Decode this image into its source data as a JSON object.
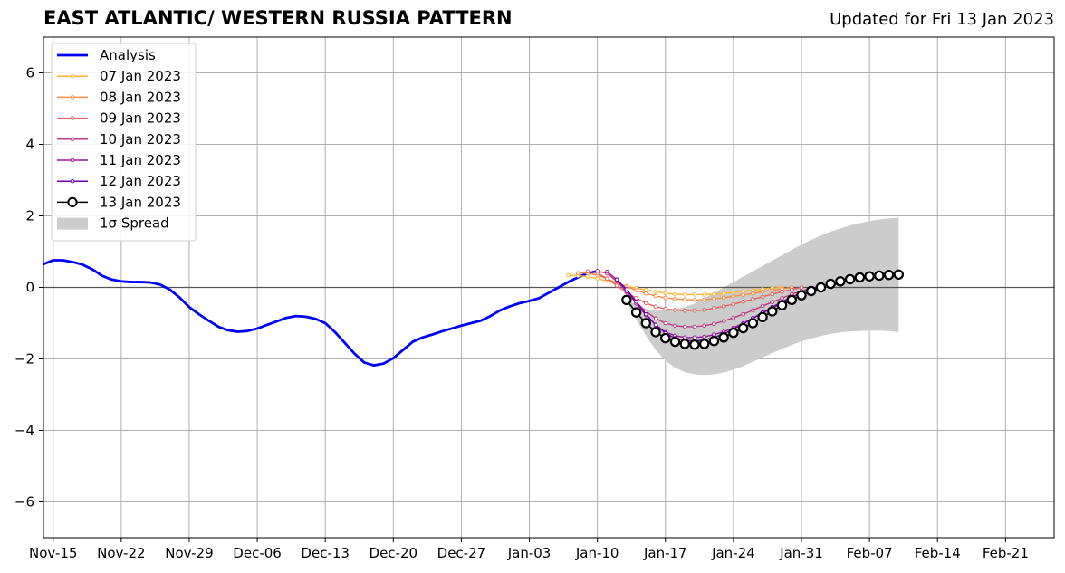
{
  "title": "EAST ATLANTIC/ WESTERN RUSSIA PATTERN",
  "subtitle": "Updated for Fri 13 Jan 2023",
  "chart_data": {
    "type": "line",
    "title": "EAST ATLANTIC/ WESTERN RUSSIA PATTERN",
    "xlabel": "",
    "ylabel": "",
    "xlim": [
      "2022-11-14",
      "2023-02-26"
    ],
    "ylim": [
      -7,
      7
    ],
    "yticks": [
      -6,
      -4,
      -2,
      0,
      2,
      4,
      6
    ],
    "xticks": [
      {
        "date": "2022-11-15",
        "label": "Nov-15"
      },
      {
        "date": "2022-11-22",
        "label": "Nov-22"
      },
      {
        "date": "2022-11-29",
        "label": "Nov-29"
      },
      {
        "date": "2022-12-06",
        "label": "Dec-06"
      },
      {
        "date": "2022-12-13",
        "label": "Dec-13"
      },
      {
        "date": "2022-12-20",
        "label": "Dec-20"
      },
      {
        "date": "2022-12-27",
        "label": "Dec-27"
      },
      {
        "date": "2023-01-03",
        "label": "Jan-03"
      },
      {
        "date": "2023-01-10",
        "label": "Jan-10"
      },
      {
        "date": "2023-01-17",
        "label": "Jan-17"
      },
      {
        "date": "2023-01-24",
        "label": "Jan-24"
      },
      {
        "date": "2023-01-31",
        "label": "Jan-31"
      },
      {
        "date": "2023-02-07",
        "label": "Feb-07"
      },
      {
        "date": "2023-02-14",
        "label": "Feb-14"
      },
      {
        "date": "2023-02-21",
        "label": "Feb-21"
      }
    ],
    "grid": true,
    "zero_line": true,
    "legend_position": "top-left",
    "analysis": {
      "name": "Analysis",
      "color": "#0000ff",
      "start_date": "2022-11-14",
      "values": [
        0.65,
        0.76,
        0.76,
        0.71,
        0.64,
        0.51,
        0.33,
        0.22,
        0.17,
        0.15,
        0.15,
        0.14,
        0.08,
        -0.06,
        -0.28,
        -0.55,
        -0.75,
        -0.93,
        -1.1,
        -1.2,
        -1.24,
        -1.22,
        -1.15,
        -1.05,
        -0.95,
        -0.85,
        -0.8,
        -0.82,
        -0.88,
        -1.0,
        -1.25,
        -1.55,
        -1.85,
        -2.1,
        -2.18,
        -2.13,
        -1.98,
        -1.75,
        -1.52,
        -1.4,
        -1.32,
        -1.23,
        -1.15,
        -1.07,
        -1.0,
        -0.93,
        -0.8,
        -0.64,
        -0.53,
        -0.44,
        -0.38,
        -0.3,
        -0.15,
        0.0,
        0.15,
        0.28,
        0.4,
        0.45
      ]
    },
    "forecasts": [
      {
        "name": "07 Jan 2023",
        "color": "#fcb634",
        "start_date": "2023-01-07",
        "values": [
          0.34,
          0.33,
          0.3,
          0.25,
          0.18,
          0.1,
          0.04,
          -0.02,
          -0.07,
          -0.12,
          -0.16,
          -0.19,
          -0.2,
          -0.2,
          -0.2,
          -0.19,
          -0.17,
          -0.14,
          -0.11,
          -0.08,
          -0.05,
          -0.02,
          0.0
        ]
      },
      {
        "name": "08 Jan 2023",
        "color": "#f68d45",
        "start_date": "2023-01-08",
        "values": [
          0.4,
          0.4,
          0.34,
          0.24,
          0.13,
          0.02,
          -0.08,
          -0.17,
          -0.24,
          -0.29,
          -0.32,
          -0.34,
          -0.35,
          -0.34,
          -0.32,
          -0.29,
          -0.25,
          -0.21,
          -0.17,
          -0.12,
          -0.08,
          -0.04,
          0.0
        ]
      },
      {
        "name": "09 Jan 2023",
        "color": "#e16462",
        "start_date": "2023-01-09",
        "values": [
          0.45,
          0.4,
          0.25,
          0.05,
          -0.14,
          -0.3,
          -0.44,
          -0.54,
          -0.6,
          -0.63,
          -0.65,
          -0.65,
          -0.63,
          -0.58,
          -0.53,
          -0.47,
          -0.4,
          -0.33,
          -0.26,
          -0.19,
          -0.12,
          -0.06,
          0.0
        ]
      },
      {
        "name": "10 Jan 2023",
        "color": "#bf3984",
        "start_date": "2023-01-10",
        "values": [
          0.46,
          0.39,
          0.17,
          -0.12,
          -0.42,
          -0.67,
          -0.87,
          -1.0,
          -1.07,
          -1.1,
          -1.1,
          -1.07,
          -1.02,
          -0.94,
          -0.85,
          -0.75,
          -0.64,
          -0.52,
          -0.41,
          -0.3,
          -0.19,
          -0.1,
          -0.02,
          0.05
        ]
      },
      {
        "name": "11 Jan 2023",
        "color": "#9a179b",
        "start_date": "2023-01-11",
        "values": [
          0.44,
          0.22,
          -0.1,
          -0.45,
          -0.78,
          -1.05,
          -1.25,
          -1.35,
          -1.4,
          -1.4,
          -1.38,
          -1.32,
          -1.24,
          -1.13,
          -1.0,
          -0.86,
          -0.72,
          -0.58,
          -0.45,
          -0.33,
          -0.22,
          -0.12,
          -0.03,
          0.05,
          0.1
        ]
      },
      {
        "name": "12 Jan 2023",
        "color": "#6a00a8",
        "start_date": "2023-01-12",
        "values": [
          0.22,
          -0.05,
          -0.4,
          -0.75,
          -1.05,
          -1.28,
          -1.42,
          -1.48,
          -1.5,
          -1.47,
          -1.4,
          -1.3,
          -1.17,
          -1.02,
          -0.86,
          -0.7,
          -0.55,
          -0.4,
          -0.27,
          -0.15,
          -0.05,
          0.03,
          0.1,
          0.15,
          0.2,
          0.25
        ]
      },
      {
        "name": "13 Jan 2023",
        "color": "#000000",
        "start_date": "2023-01-13",
        "values": [
          -0.35,
          -0.7,
          -1.0,
          -1.25,
          -1.42,
          -1.52,
          -1.58,
          -1.6,
          -1.58,
          -1.5,
          -1.4,
          -1.27,
          -1.14,
          -1.0,
          -0.83,
          -0.67,
          -0.5,
          -0.35,
          -0.22,
          -0.1,
          0.0,
          0.1,
          0.17,
          0.23,
          0.28,
          0.31,
          0.33,
          0.35,
          0.36
        ]
      }
    ],
    "spread": {
      "name": "1σ Spread",
      "color": "#cccccc",
      "start_date": "2023-01-13",
      "upper": [
        -0.3,
        -0.5,
        -0.6,
        -0.65,
        -0.65,
        -0.6,
        -0.55,
        -0.45,
        -0.3,
        -0.15,
        0.0,
        0.15,
        0.3,
        0.45,
        0.6,
        0.75,
        0.9,
        1.05,
        1.2,
        1.33,
        1.45,
        1.56,
        1.65,
        1.73,
        1.8,
        1.85,
        1.9,
        1.93,
        1.95
      ],
      "lower": [
        -0.4,
        -0.9,
        -1.35,
        -1.75,
        -2.05,
        -2.25,
        -2.37,
        -2.43,
        -2.45,
        -2.43,
        -2.38,
        -2.3,
        -2.2,
        -2.08,
        -1.96,
        -1.84,
        -1.72,
        -1.61,
        -1.51,
        -1.43,
        -1.36,
        -1.3,
        -1.26,
        -1.23,
        -1.22,
        -1.21,
        -1.21,
        -1.22,
        -1.25
      ]
    }
  }
}
